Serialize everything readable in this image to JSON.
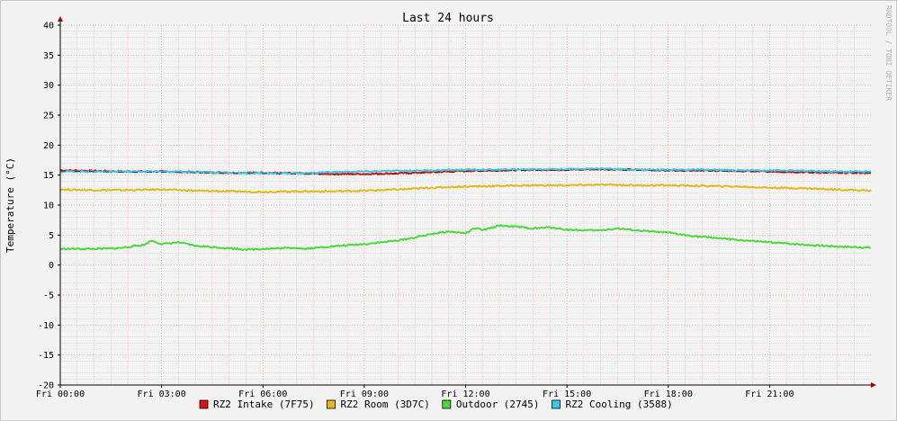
{
  "chart_data": {
    "type": "line",
    "title": "Last 24 hours",
    "ylabel": "Temperature (°C)",
    "xlabel": "",
    "ylim": [
      -20,
      40
    ],
    "yticks": [
      40,
      35,
      30,
      25,
      20,
      15,
      10,
      5,
      0,
      -5,
      -10,
      -15,
      -20
    ],
    "xlim_hours": [
      0,
      24
    ],
    "xticks": [
      {
        "hour": 0,
        "label": "Fri 00:00"
      },
      {
        "hour": 3,
        "label": "Fri 03:00"
      },
      {
        "hour": 6,
        "label": "Fri 06:00"
      },
      {
        "hour": 9,
        "label": "Fri 09:00"
      },
      {
        "hour": 12,
        "label": "Fri 12:00"
      },
      {
        "hour": 15,
        "label": "Fri 15:00"
      },
      {
        "hour": 18,
        "label": "Fri 18:00"
      },
      {
        "hour": 21,
        "label": "Fri 21:00"
      }
    ],
    "grid": true,
    "legend_position": "bottom",
    "watermark": "RRDTOOL / TOBI OETIKER",
    "series": [
      {
        "name": "RZ2 Intake (7F75)",
        "color": "#e01010",
        "x": [
          0,
          1,
          2,
          3,
          4,
          5,
          6,
          7,
          8,
          9,
          10,
          11,
          12,
          13,
          14,
          15,
          16,
          17,
          18,
          19,
          20,
          21,
          22,
          23,
          24
        ],
        "values": [
          15.8,
          15.7,
          15.6,
          15.6,
          15.5,
          15.4,
          15.4,
          15.3,
          15.2,
          15.2,
          15.3,
          15.5,
          15.7,
          15.8,
          15.9,
          15.9,
          16.0,
          15.9,
          15.8,
          15.8,
          15.7,
          15.6,
          15.5,
          15.4,
          15.4
        ]
      },
      {
        "name": "RZ2 Room (3D7C)",
        "color": "#e2b91a",
        "x": [
          0,
          1,
          2,
          3,
          4,
          5,
          6,
          7,
          8,
          9,
          10,
          11,
          12,
          13,
          14,
          15,
          16,
          17,
          18,
          19,
          20,
          21,
          22,
          23,
          24
        ],
        "values": [
          12.6,
          12.5,
          12.5,
          12.6,
          12.4,
          12.3,
          12.2,
          12.3,
          12.3,
          12.4,
          12.6,
          12.9,
          13.1,
          13.2,
          13.3,
          13.3,
          13.4,
          13.3,
          13.3,
          13.2,
          13.1,
          12.9,
          12.8,
          12.6,
          12.4
        ]
      },
      {
        "name": "Outdoor (2745)",
        "color": "#4cd93c",
        "x": [
          0,
          1,
          1.7,
          2.5,
          2.7,
          3,
          3.5,
          4,
          4.5,
          5,
          5.5,
          6,
          7,
          7.2,
          8,
          8.5,
          9,
          9.5,
          10,
          10.5,
          11,
          11.5,
          12,
          12.3,
          12.5,
          13,
          13.5,
          14,
          14.5,
          15,
          15.5,
          16,
          16.5,
          17,
          17.5,
          18,
          18.5,
          19,
          19.5,
          20,
          21,
          22,
          23,
          24
        ],
        "values": [
          2.7,
          2.7,
          2.8,
          3.4,
          4.1,
          3.5,
          3.8,
          3.2,
          3.0,
          2.8,
          2.6,
          2.7,
          2.9,
          2.7,
          3.1,
          3.3,
          3.5,
          3.8,
          4.1,
          4.6,
          5.2,
          5.6,
          5.3,
          6.2,
          5.8,
          6.6,
          6.4,
          6.1,
          6.3,
          5.9,
          5.8,
          5.8,
          6.1,
          5.8,
          5.6,
          5.4,
          5.0,
          4.7,
          4.5,
          4.2,
          3.8,
          3.4,
          3.1,
          2.9
        ]
      },
      {
        "name": "RZ2 Cooling (3588)",
        "color": "#36cce8",
        "x": [
          0,
          1,
          2,
          3,
          4,
          5,
          6,
          7,
          8,
          9,
          10,
          11,
          12,
          13,
          14,
          15,
          16,
          17,
          18,
          19,
          20,
          21,
          22,
          23,
          24
        ],
        "values": [
          15.6,
          15.6,
          15.6,
          15.6,
          15.5,
          15.4,
          15.3,
          15.3,
          15.5,
          15.6,
          15.7,
          15.8,
          15.9,
          15.9,
          16.0,
          16.0,
          16.1,
          15.9,
          15.9,
          15.9,
          15.8,
          15.8,
          15.7,
          15.6,
          15.6
        ]
      }
    ]
  }
}
